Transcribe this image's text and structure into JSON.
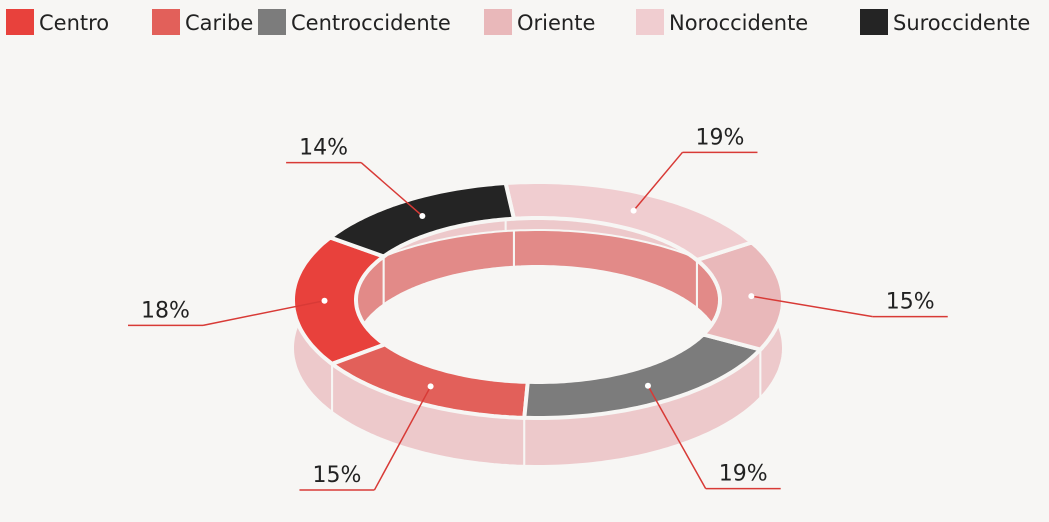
{
  "chart_data": {
    "type": "pie",
    "donut": true,
    "categories": [
      "Centro",
      "Caribe",
      "Centroccidente",
      "Oriente",
      "Noroccidente",
      "Suroccidente"
    ],
    "values": [
      18,
      15,
      19,
      15,
      19,
      14
    ],
    "value_labels": [
      "18%",
      "15%",
      "19%",
      "15%",
      "19%",
      "14%"
    ],
    "colors": [
      "#e8413c",
      "#e2605a",
      "#7c7c7c",
      "#e9b8ba",
      "#f0cdd0",
      "#242424"
    ],
    "legend": "top"
  }
}
